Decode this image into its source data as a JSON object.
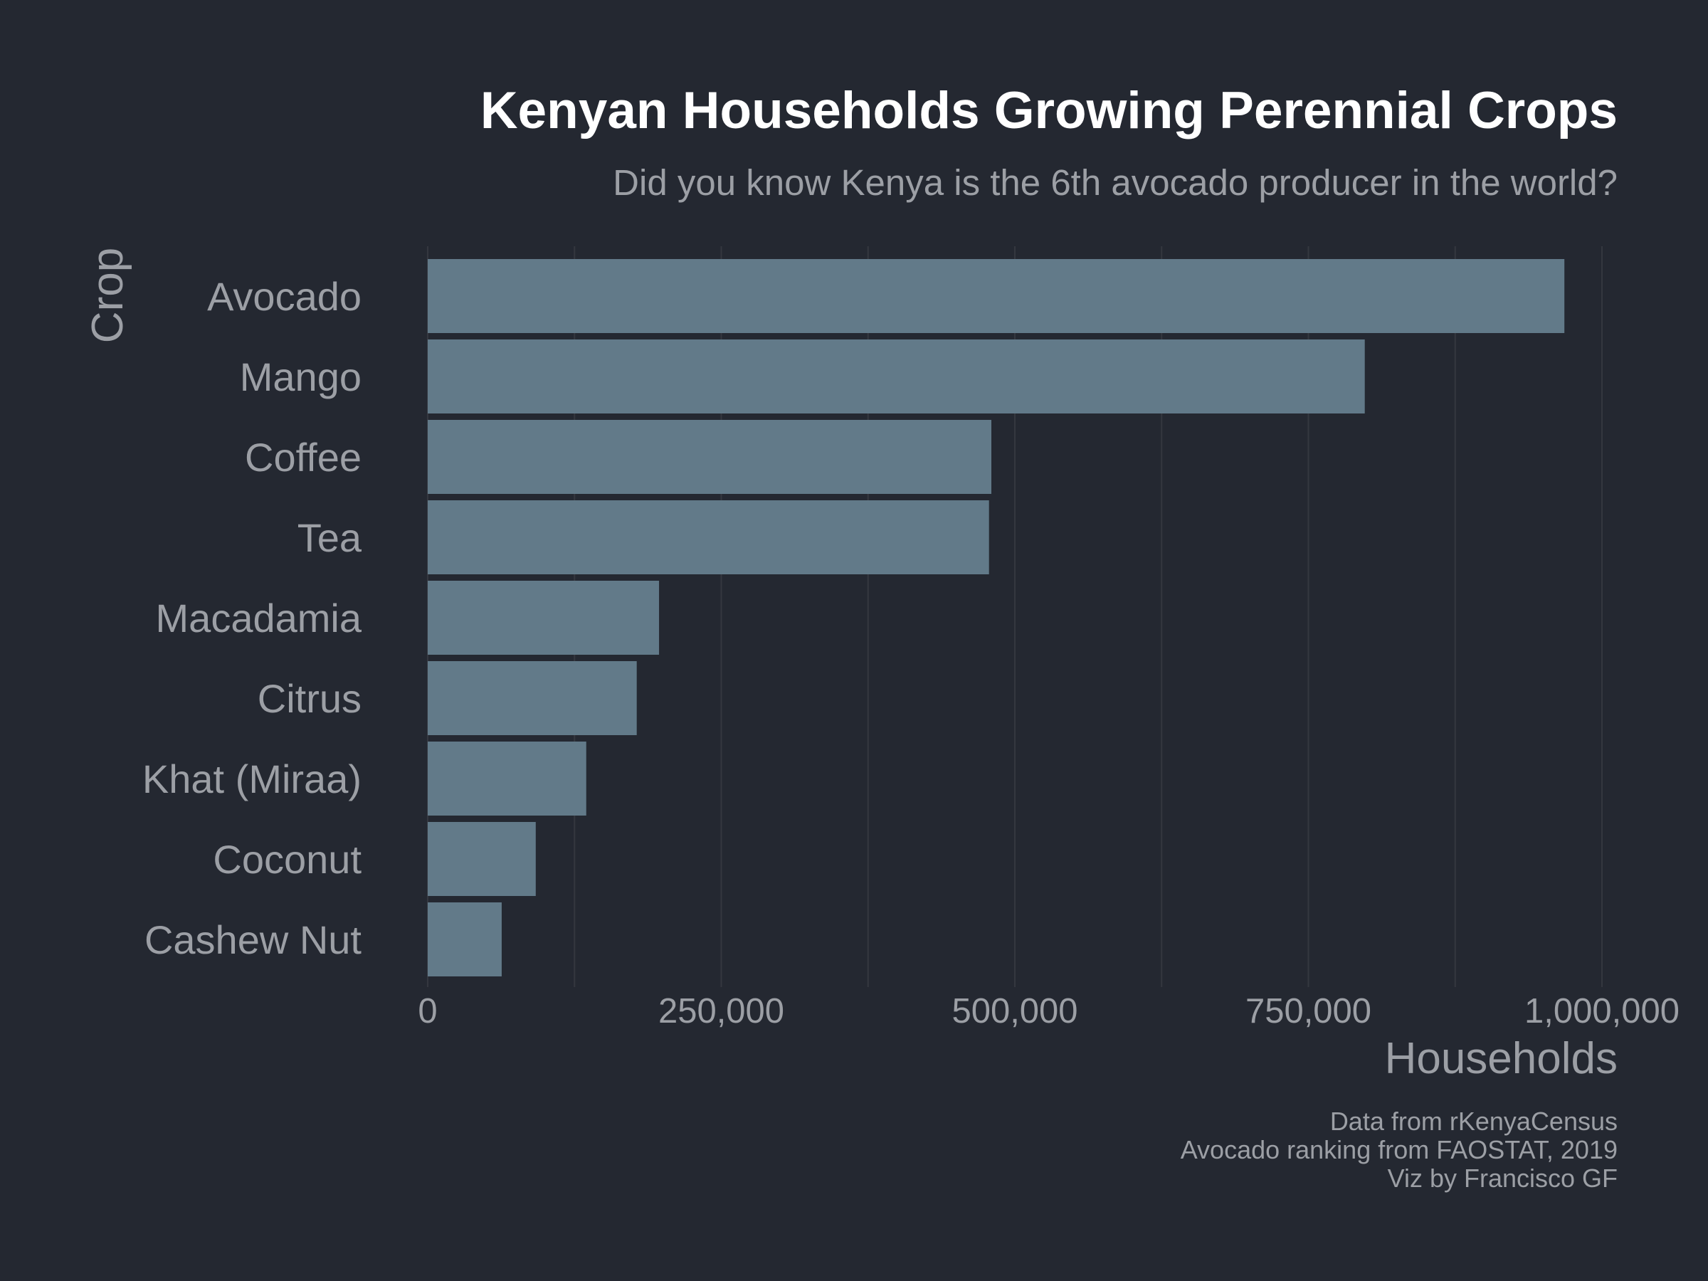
{
  "chart_data": {
    "type": "bar",
    "orientation": "horizontal",
    "title": "Kenyan Households Growing Perennial Crops",
    "subtitle": "Did you know Kenya is the 6th avocado producer in the world?",
    "xlabel": "Households",
    "ylabel": "Crop",
    "categories": [
      "Avocado",
      "Mango",
      "Coffee",
      "Tea",
      "Macadamia",
      "Citrus",
      "Khat (Miraa)",
      "Coconut",
      "Cashew Nut"
    ],
    "values": [
      968000,
      798000,
      480000,
      478000,
      197000,
      178000,
      135000,
      92000,
      63000
    ],
    "xlim": [
      0,
      1000000
    ],
    "xticks": [
      0,
      250000,
      500000,
      750000,
      1000000
    ],
    "xtick_labels": [
      "0",
      "250,000",
      "500,000",
      "750,000",
      "1,000,000"
    ],
    "grid": true,
    "legend": "none",
    "caption": [
      "Data from rKenyaCensus",
      "Avocado ranking from FAOSTAT, 2019",
      "Viz by Francisco GF"
    ]
  },
  "colors": {
    "background": "#242831",
    "bar": "#627a89",
    "grid": "#34373f",
    "title": "#ffffff",
    "text": "#9c9fa5"
  }
}
